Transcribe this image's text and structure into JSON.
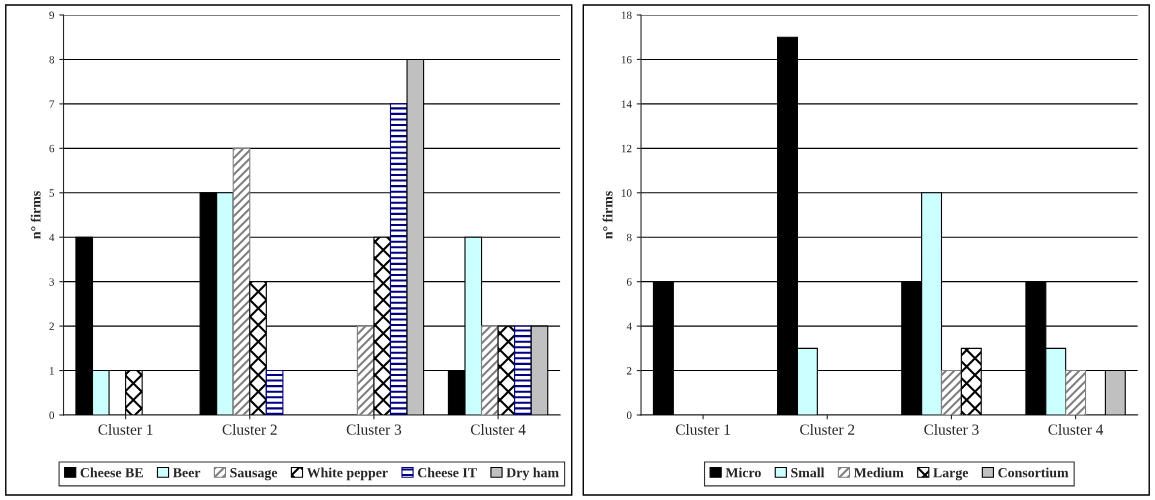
{
  "chart_data": [
    {
      "type": "bar",
      "ylabel": "n° firms",
      "categories": [
        "Cluster 1",
        "Cluster 2",
        "Cluster 3",
        "Cluster 4"
      ],
      "ylim": [
        0,
        9
      ],
      "yticks": [
        0,
        1,
        2,
        3,
        4,
        5,
        6,
        7,
        8,
        9
      ],
      "grid": "y",
      "legend": "bottom",
      "series": [
        {
          "name": "Cheese BE",
          "color": "#000000",
          "values": [
            4,
            5,
            null,
            1
          ]
        },
        {
          "name": "Beer",
          "color": "#ccffff",
          "values": [
            1,
            5,
            null,
            4
          ]
        },
        {
          "name": "Sausage",
          "color": "#808080",
          "values": [
            null,
            6,
            2,
            2
          ]
        },
        {
          "name": "White pepper",
          "color": "#000000",
          "values": [
            1,
            3,
            4,
            2
          ]
        },
        {
          "name": "Cheese IT",
          "color": "#000080",
          "values": [
            null,
            1,
            7,
            2
          ]
        },
        {
          "name": "Dry ham",
          "color": "#c0c0c0",
          "values": [
            null,
            null,
            8,
            2
          ]
        }
      ]
    },
    {
      "type": "bar",
      "ylabel": "n° firms",
      "categories": [
        "Cluster 1",
        "Cluster 2",
        "Cluster 3",
        "Cluster 4"
      ],
      "ylim": [
        0,
        18
      ],
      "yticks": [
        0,
        2,
        4,
        6,
        8,
        10,
        12,
        14,
        16,
        18
      ],
      "grid": "y",
      "legend": "bottom",
      "series": [
        {
          "name": "Micro",
          "color": "#000000",
          "values": [
            6,
            17,
            6,
            6
          ]
        },
        {
          "name": "Small",
          "color": "#ccffff",
          "values": [
            null,
            3,
            10,
            3
          ]
        },
        {
          "name": "Medium",
          "color": "#808080",
          "values": [
            null,
            null,
            2,
            2
          ]
        },
        {
          "name": "Large",
          "color": "#000000",
          "values": [
            null,
            null,
            3,
            null
          ]
        },
        {
          "name": "Consortium",
          "color": "#c0c0c0",
          "values": [
            null,
            null,
            null,
            2
          ]
        }
      ]
    }
  ]
}
